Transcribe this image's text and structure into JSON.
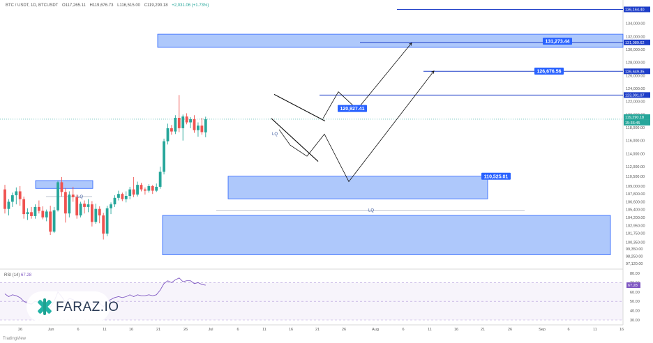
{
  "header": {
    "symbol": "BTC / USDT, 1D, BTCUSDT",
    "open": "O117,265.11",
    "high": "H119,676.73",
    "low": "L116,515.00",
    "close": "C119,290.18",
    "change": "+2,031.06 (+1.73%)"
  },
  "footer": {
    "attribution": "TradingView"
  },
  "logo": {
    "text": "FARAZ.IO"
  },
  "rsi": {
    "label": "RSI (14)",
    "value": "67.28",
    "value_badge": "67.28"
  },
  "colors": {
    "up": "#26a69a",
    "down": "#ef5350",
    "zone": "#3d7bf5",
    "accent": "#2962ff",
    "rsi_line": "#7e57c2"
  },
  "annotations": {
    "lq_labels": [
      "LQ",
      "LQ",
      "LQ"
    ],
    "target_labels": [
      "131,273.44",
      "126,676.56",
      "120,927.41",
      "110,525.01"
    ]
  },
  "chart_data": {
    "type": "candlestick",
    "symbol": "BTC / USDT",
    "interval": "1D",
    "y_axis_ticks": [
      "138,000.00",
      "136,164.40",
      "134,000.00",
      "132,000.00",
      "131,089.62",
      "130,000.00",
      "128,000.00",
      "126,649.35",
      "126,000.00",
      "124,000.00",
      "123,001.07",
      "122,000.00",
      "120,000.00",
      "119,290.18",
      "118,000.00",
      "116,000.00",
      "114,000.00",
      "112,000.00",
      "110,500.00",
      "109,000.00",
      "107,800.00",
      "106,600.00",
      "105,400.00",
      "104,200.00",
      "102,950.00",
      "101,750.00",
      "100,350.00",
      "99,350.00",
      "98,250.00",
      "97,120.00"
    ],
    "rsi_axis_ticks": [
      "80.00",
      "70.00",
      "60.00",
      "50.00",
      "40.00",
      "30.00"
    ],
    "x_axis_ticks": [
      "26",
      "Jun",
      "6",
      "11",
      "16",
      "21",
      "26",
      "Jul",
      "6",
      "11",
      "16",
      "21",
      "26",
      "Aug",
      "6",
      "11",
      "16",
      "21",
      "26",
      "Sep",
      "6",
      "11",
      "16"
    ],
    "price_badges": [
      "136,164.40",
      "131,089.62",
      "126,649.35",
      "123,001.07",
      "119,290.18",
      "15:36:45"
    ],
    "horizontal_levels": [
      136164.4,
      131089.62,
      126649.35,
      123001.07
    ],
    "ohlc": [
      [
        108500,
        109200,
        104800,
        105500
      ],
      [
        105500,
        107000,
        104500,
        106600
      ],
      [
        106600,
        108000,
        105800,
        107600
      ],
      [
        107600,
        108800,
        106200,
        108200
      ],
      [
        108200,
        109000,
        106000,
        107000
      ],
      [
        107000,
        107400,
        104000,
        104700
      ],
      [
        104700,
        105600,
        103800,
        105000
      ],
      [
        105000,
        105800,
        104000,
        104400
      ],
      [
        104400,
        106200,
        104000,
        105800
      ],
      [
        105800,
        106800,
        104800,
        105200
      ],
      [
        105200,
        105900,
        103900,
        104200
      ],
      [
        104200,
        105400,
        103600,
        105100
      ],
      [
        105100,
        106000,
        101500,
        102000
      ],
      [
        102000,
        105800,
        101800,
        105300
      ],
      [
        105300,
        109800,
        105100,
        109600
      ],
      [
        109600,
        110400,
        107400,
        108100
      ],
      [
        108100,
        108700,
        103400,
        104800
      ],
      [
        104800,
        108200,
        104200,
        107700
      ],
      [
        107700,
        108900,
        106600,
        107300
      ],
      [
        107300,
        107700,
        104000,
        104500
      ],
      [
        104500,
        106600,
        104200,
        106300
      ],
      [
        106300,
        106800,
        104800,
        105800
      ],
      [
        105800,
        107000,
        105000,
        106200
      ],
      [
        106200,
        106700,
        102800,
        103500
      ],
      [
        103500,
        106300,
        103200,
        105500
      ],
      [
        105500,
        105900,
        103300,
        104500
      ],
      [
        104500,
        104900,
        100800,
        101700
      ],
      [
        101700,
        106000,
        101300,
        105600
      ],
      [
        105600,
        106500,
        104700,
        106200
      ],
      [
        106200,
        107600,
        105800,
        107200
      ],
      [
        107200,
        108300,
        106800,
        107800
      ],
      [
        107800,
        108000,
        106700,
        107000
      ],
      [
        107000,
        108200,
        106500,
        107500
      ],
      [
        107500,
        108900,
        107000,
        108500
      ],
      [
        108500,
        110400,
        107300,
        107700
      ],
      [
        107700,
        109700,
        107400,
        109200
      ],
      [
        109200,
        109500,
        108200,
        108500
      ],
      [
        108500,
        108800,
        107700,
        108300
      ],
      [
        108300,
        109300,
        108000,
        109000
      ],
      [
        109000,
        109200,
        107800,
        108300
      ],
      [
        108300,
        109400,
        108100,
        108900
      ],
      [
        108900,
        112000,
        108600,
        111200
      ],
      [
        111200,
        116300,
        110800,
        115900
      ],
      [
        115900,
        118600,
        115400,
        117900
      ],
      [
        117900,
        118400,
        116900,
        117400
      ],
      [
        117400,
        119900,
        117000,
        119500
      ],
      [
        119500,
        123000,
        117300,
        117900
      ],
      [
        117900,
        120000,
        116000,
        119700
      ],
      [
        119700,
        120200,
        118500,
        118800
      ],
      [
        118800,
        119600,
        117900,
        119300
      ],
      [
        119300,
        119900,
        117200,
        117600
      ],
      [
        117600,
        118800,
        116600,
        118300
      ],
      [
        118300,
        119500,
        116900,
        117300
      ],
      [
        117265.11,
        119676.73,
        116515.0,
        119290.18
      ]
    ],
    "rsi_values": [
      58,
      55,
      57,
      56,
      54,
      50,
      48,
      47,
      50,
      49,
      46,
      48,
      44,
      50,
      60,
      55,
      49,
      53,
      52,
      48,
      50,
      50,
      51,
      46,
      49,
      48,
      44,
      50,
      52,
      54,
      55,
      54,
      55,
      57,
      55,
      57,
      56,
      56,
      57,
      56,
      57,
      62,
      69,
      72,
      70,
      73,
      75,
      71,
      72,
      72,
      69,
      70,
      68,
      67.28
    ]
  }
}
